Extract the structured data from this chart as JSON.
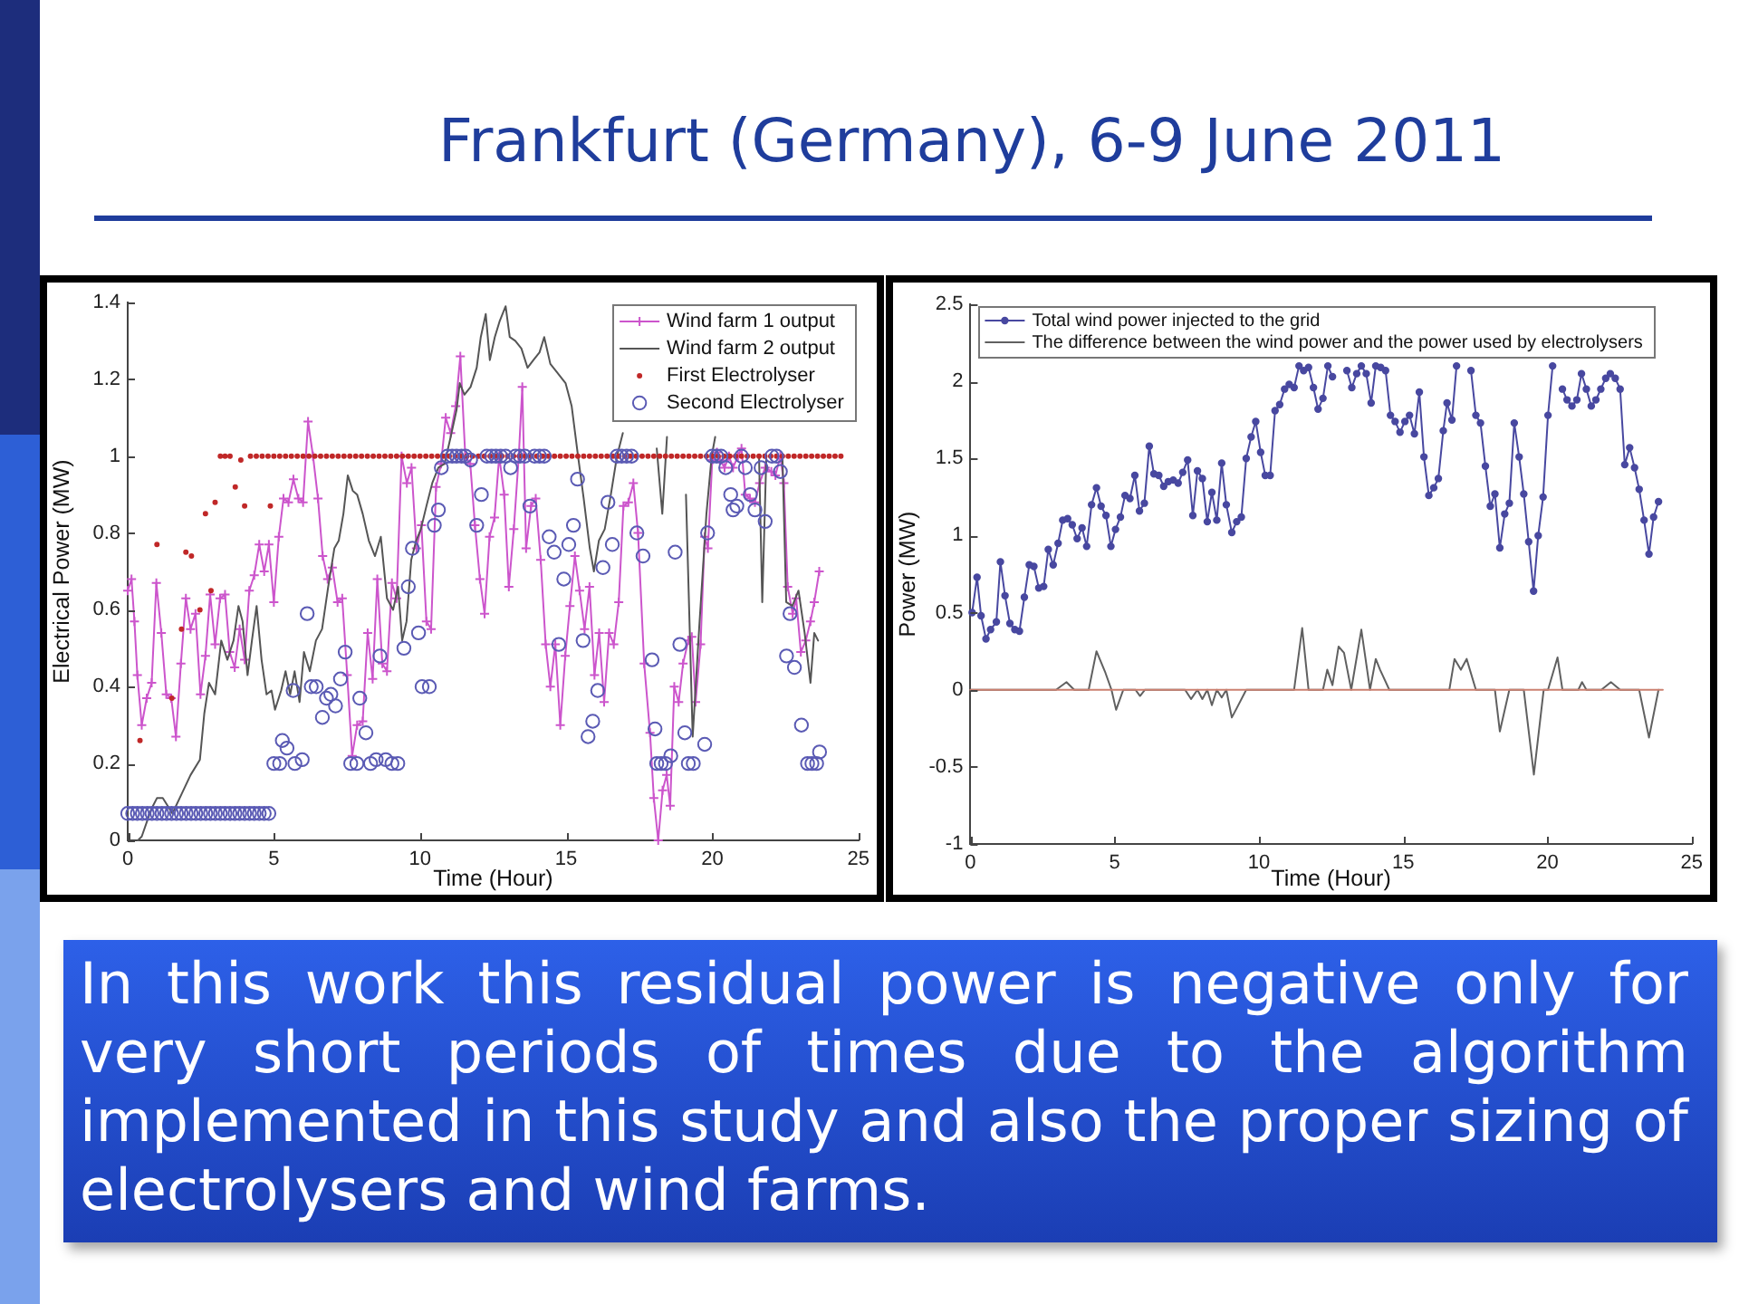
{
  "chart_data": [
    {
      "type": "other",
      "title": "Frankfurt (Germany), 6-9 June 2011"
    },
    {
      "type": "line",
      "xlabel": "Time (Hour)",
      "ylabel": "Electrical Power (MW)",
      "xlim": [
        0,
        25
      ],
      "xticks": [
        0,
        5,
        10,
        15,
        20,
        25
      ],
      "ylim": [
        0,
        1.4
      ],
      "yticks": [
        0,
        0.2,
        0.4,
        0.6,
        0.8,
        1,
        1.2,
        1.4
      ],
      "legend": "top right",
      "series": [
        {
          "name": "Wind farm 1 output",
          "type": "line",
          "marker": "cross",
          "color": "#cc55cc",
          "x": [
            0,
            0.13,
            0.23,
            0.33,
            0.48,
            0.65,
            0.82,
            0.98,
            1.15,
            1.32,
            1.49,
            1.65,
            1.82,
            1.99,
            2.15,
            2.32,
            2.49,
            2.66,
            2.82,
            2.99,
            3.16,
            3.33,
            3.49,
            3.66,
            3.83,
            4.0,
            4.16,
            4.33,
            4.5,
            4.67,
            4.83,
            5.0,
            5.17,
            5.33,
            5.5,
            5.67,
            5.84,
            6.0,
            6.17,
            6.34,
            6.51,
            6.67,
            6.84,
            7.0,
            7.18,
            7.34,
            7.51,
            7.68,
            7.85,
            8.04,
            8.21,
            8.38,
            8.54,
            8.71,
            8.87,
            9.04,
            9.2,
            9.37,
            9.55,
            9.71,
            9.88,
            10.05,
            10.22,
            10.38,
            10.55,
            10.72,
            10.88,
            11.05,
            11.22,
            11.38,
            11.55,
            11.72,
            11.88,
            12.05,
            12.21,
            12.38,
            12.55,
            12.71,
            12.88,
            13.04,
            13.21,
            13.38,
            13.5,
            13.63,
            13.8,
            13.96,
            14.13,
            14.3,
            14.46,
            14.63,
            14.8,
            14.97,
            15.13,
            15.3,
            15.46,
            15.63,
            15.8,
            15.97,
            16.13,
            16.3,
            16.47,
            16.63,
            16.8,
            16.96,
            17.13,
            17.3,
            17.46,
            17.67,
            17.87,
            18.0,
            18.15,
            18.3,
            18.44,
            18.56,
            18.7,
            18.85,
            19.0,
            19.18,
            19.3,
            19.43,
            19.6,
            19.74,
            19.85,
            20.0,
            20.16,
            20.26,
            20.42,
            20.57,
            20.71,
            20.88,
            21.0,
            21.13,
            21.29,
            21.46,
            21.62,
            21.81,
            22.02,
            22.16,
            22.33,
            22.45,
            22.58,
            22.75,
            22.87,
            23.03,
            23.2,
            23.36,
            23.49,
            23.66
          ],
          "values": [
            0.65,
            0.68,
            0.57,
            0.43,
            0.3,
            0.37,
            0.41,
            0.67,
            0.54,
            0.38,
            0.37,
            0.27,
            0.46,
            0.63,
            0.55,
            0.59,
            0.38,
            0.48,
            0.64,
            0.51,
            0.63,
            0.64,
            0.49,
            0.45,
            0.55,
            0.47,
            0.65,
            0.69,
            0.77,
            0.7,
            0.77,
            0.62,
            0.79,
            0.89,
            0.88,
            0.94,
            0.89,
            0.88,
            1.09,
            1.0,
            0.89,
            0.74,
            0.68,
            0.71,
            0.62,
            0.63,
            0.43,
            0.22,
            0.3,
            0.31,
            0.54,
            0.42,
            0.68,
            0.46,
            0.44,
            0.67,
            0.63,
            1.0,
            0.93,
            0.97,
            0.76,
            0.82,
            0.57,
            0.55,
            0.92,
            0.98,
            1.1,
            1.06,
            1.13,
            1.26,
            1.0,
            0.98,
            0.82,
            0.68,
            0.59,
            0.79,
            0.84,
            1.0,
            0.9,
            0.66,
            0.81,
            1.0,
            1.18,
            0.76,
            0.87,
            0.89,
            0.73,
            0.51,
            0.4,
            0.51,
            0.3,
            0.48,
            0.61,
            0.74,
            0.65,
            0.55,
            0.66,
            0.43,
            0.54,
            0.36,
            0.54,
            0.51,
            0.62,
            0.87,
            0.88,
            0.93,
            0.8,
            0.46,
            0.28,
            0.11,
            0.0,
            0.13,
            0.17,
            0.09,
            0.4,
            0.36,
            0.46,
            0.52,
            0.53,
            0.36,
            0.51,
            0.79,
            0.76,
            0.99,
            1.01,
            0.99,
            0.97,
            1.0,
            0.97,
            1.0,
            1.02,
            0.9,
            0.89,
            0.88,
            0.93,
            0.97,
            0.96,
            0.95,
            1.0,
            0.93,
            0.66,
            0.59,
            0.63,
            0.49,
            0.52,
            0.57,
            0.62,
            0.7
          ]
        },
        {
          "name": "Wind farm 2 output",
          "type": "line",
          "marker": "none",
          "color": "#555555",
          "x": [
            0.35,
            0.48,
            0.8,
            1.0,
            1.2,
            1.53,
            1.84,
            2.15,
            2.47,
            2.62,
            2.78,
            2.99,
            3.2,
            3.41,
            3.62,
            3.79,
            3.93,
            4.1,
            4.25,
            4.41,
            4.58,
            4.75,
            4.92,
            5.04,
            5.25,
            5.4,
            5.56,
            5.71,
            5.88,
            6.03,
            6.23,
            6.44,
            6.65,
            6.86,
            7.07,
            7.22,
            7.38,
            7.53,
            7.7,
            7.85,
            8.04,
            8.25,
            8.46,
            8.66,
            8.87,
            9.08,
            9.25,
            9.39,
            9.54,
            9.7,
            9.87,
            10.03,
            10.22,
            10.42,
            10.63,
            10.84,
            11.05,
            11.25,
            11.36,
            11.52,
            11.73,
            11.94,
            12.08,
            12.25,
            12.39,
            12.56,
            12.72,
            12.93,
            13.07,
            13.26,
            13.47,
            13.68,
            13.88,
            14.09,
            14.25,
            14.46,
            14.67,
            14.98,
            15.19,
            15.39,
            15.6,
            15.81,
            15.95,
            16.12,
            16.32,
            16.53,
            16.74,
            16.94,
            17.15,
            17.5,
            17.9,
            18.1,
            18.29,
            18.45,
            18.6,
            18.9,
            19.1,
            19.33,
            19.55,
            19.8,
            19.98,
            20.1,
            20.3,
            20.7,
            21.1,
            21.5,
            21.6,
            21.71,
            21.85,
            22.0,
            22.2,
            22.4,
            22.53,
            22.74,
            22.95,
            23.16,
            23.36,
            23.49,
            23.62
          ],
          "values": [
            0.0,
            0.01,
            0.08,
            0.11,
            0.11,
            0.07,
            0.12,
            0.17,
            0.21,
            0.33,
            0.41,
            0.38,
            0.52,
            0.47,
            0.52,
            0.61,
            0.57,
            0.43,
            0.52,
            0.61,
            0.47,
            0.38,
            0.39,
            0.34,
            0.39,
            0.44,
            0.38,
            0.44,
            0.36,
            0.49,
            0.44,
            0.52,
            0.55,
            0.66,
            0.76,
            0.78,
            0.85,
            0.95,
            0.91,
            0.9,
            0.85,
            0.78,
            0.74,
            0.79,
            0.63,
            0.6,
            0.66,
            0.52,
            0.57,
            0.73,
            0.78,
            0.81,
            0.87,
            0.93,
            0.97,
            0.98,
            1.05,
            1.12,
            1.19,
            1.16,
            1.18,
            1.23,
            1.31,
            1.37,
            1.25,
            1.31,
            1.35,
            1.39,
            1.31,
            1.3,
            1.28,
            1.23,
            1.25,
            1.27,
            1.31,
            1.24,
            1.22,
            1.19,
            1.13,
            1.01,
            0.89,
            0.76,
            0.7,
            0.78,
            0.81,
            0.9,
            1.0,
            1.06,
            null,
            null,
            null,
            1.02,
            0.85,
            1.05,
            null,
            null,
            0.9,
            0.27,
            0.55,
            0.85,
            1.0,
            1.05,
            null,
            null,
            null,
            null,
            1.0,
            0.62,
            1.0,
            null,
            null,
            1.0,
            0.62,
            0.61,
            0.65,
            0.54,
            0.41,
            0.54,
            0.52
          ]
        },
        {
          "name": "First Electrolyser",
          "type": "scatter",
          "marker": "circle",
          "color": "#c02828",
          "x": [
            0.42,
            1.0,
            1.51,
            1.84,
            1.99,
            2.18,
            2.47,
            2.66,
            2.85,
            2.99,
            3.17,
            3.33,
            3.5,
            3.68,
            3.87,
            4.0,
            4.2,
            4.4,
            4.6,
            4.8,
            4.88,
            5,
            5.2,
            5.4,
            5.6,
            5.8,
            6,
            6.2,
            6.4,
            6.6,
            6.8,
            7,
            7.2,
            7.4,
            7.6,
            7.8,
            8,
            8.2,
            8.4,
            8.6,
            8.8,
            9,
            9.2,
            9.4,
            9.6,
            9.8,
            10,
            10.2,
            10.4,
            10.6,
            10.8,
            11,
            11.2,
            11.4,
            11.6,
            11.8,
            12,
            12.2,
            12.4,
            12.6,
            12.8,
            13,
            13.2,
            13.4,
            13.6,
            13.8,
            14,
            14.2,
            14.4,
            14.6,
            14.8,
            15,
            15.2,
            15.4,
            15.6,
            15.8,
            16,
            16.2,
            16.4,
            16.6,
            16.8,
            17,
            17.2,
            17.4,
            17.6,
            17.8,
            18,
            18.2,
            18.4,
            18.6,
            18.8,
            19,
            19.2,
            19.4,
            19.6,
            19.8,
            20,
            20.2,
            20.4,
            20.6,
            20.8,
            21,
            21.2,
            21.4,
            21.6,
            21.8,
            22,
            22.2,
            22.4,
            22.6,
            22.8,
            23,
            23.2,
            23.4,
            23.6,
            23.8,
            24,
            24.2,
            24.4
          ],
          "values": [
            0.26,
            0.77,
            0.37,
            0.55,
            0.75,
            0.74,
            0.6,
            0.85,
            0.65,
            0.88,
            1,
            1,
            1,
            0.92,
            0.99,
            0.87,
            1,
            1,
            1,
            1,
            0.87,
            1,
            1,
            1,
            1,
            1,
            1,
            1,
            1,
            1,
            1,
            1,
            1,
            1,
            1,
            1,
            1,
            1,
            1,
            1,
            1,
            1,
            1,
            1,
            1,
            1,
            1,
            1,
            1,
            1,
            1,
            1,
            1,
            1,
            1,
            1,
            1,
            1,
            1,
            1,
            1,
            1,
            1,
            1,
            1,
            1,
            1,
            1,
            1,
            1,
            1,
            1,
            1,
            1,
            1,
            1,
            1,
            1,
            1,
            1,
            1,
            1,
            1,
            1,
            1,
            1,
            1,
            1,
            1,
            1,
            1,
            1,
            1,
            1,
            1,
            1,
            1,
            1,
            1,
            1,
            1,
            1,
            1,
            1,
            1,
            1,
            1,
            1,
            1,
            1,
            1,
            1,
            1,
            1,
            1,
            1,
            1,
            1,
            1
          ]
        },
        {
          "name": "Second Electrolyser",
          "type": "scatter",
          "marker": "circle",
          "color": "#5a5ab4",
          "x": [
            0,
            0.17,
            0.33,
            0.5,
            0.67,
            0.83,
            1,
            1.17,
            1.33,
            1.5,
            1.67,
            1.83,
            2,
            2.17,
            2.33,
            2.5,
            2.67,
            2.83,
            3,
            3.17,
            3.33,
            3.5,
            3.67,
            3.83,
            4,
            4.17,
            4.33,
            4.5,
            4.67,
            4.83,
            5.0,
            5.2,
            5.29,
            5.45,
            5.66,
            5.72,
            5.97,
            6.14,
            6.28,
            6.45,
            6.66,
            6.8,
            6.95,
            7.11,
            7.28,
            7.44,
            7.63,
            7.84,
            7.94,
            8.15,
            8.31,
            8.5,
            8.63,
            8.83,
            9.04,
            9.24,
            9.45,
            9.6,
            9.74,
            9.95,
            10.07,
            10.32,
            10.49,
            10.63,
            10.73,
            10.94,
            11.1,
            11.25,
            11.42,
            11.56,
            11.73,
            11.94,
            12.1,
            12.29,
            12.45,
            12.6,
            12.76,
            12.93,
            13.1,
            13.27,
            13.42,
            13.59,
            13.76,
            13.92,
            14.09,
            14.25,
            14.42,
            14.59,
            14.75,
            14.92,
            15.09,
            15.25,
            15.39,
            15.58,
            15.75,
            15.91,
            16.08,
            16.26,
            16.43,
            16.58,
            16.74,
            16.9,
            17.07,
            17.24,
            17.42,
            17.63,
            17.94,
            18.04,
            18.1,
            18.25,
            18.4,
            18.58,
            18.73,
            18.89,
            19.06,
            19.18,
            19.35,
            19.74,
            19.84,
            20.0,
            20.15,
            20.3,
            20.46,
            20.63,
            20.71,
            20.84,
            21.0,
            21.13,
            21.3,
            21.46,
            21.67,
            21.81,
            22.04,
            22.2,
            22.33,
            22.54,
            22.66,
            22.81,
            23.05,
            23.26,
            23.41,
            23.57,
            23.67
          ],
          "values": [
            0.07,
            0.07,
            0.07,
            0.07,
            0.07,
            0.07,
            0.07,
            0.07,
            0.07,
            0.07,
            0.07,
            0.07,
            0.07,
            0.07,
            0.07,
            0.07,
            0.07,
            0.07,
            0.07,
            0.07,
            0.07,
            0.07,
            0.07,
            0.07,
            0.07,
            0.07,
            0.07,
            0.07,
            0.07,
            0.07,
            0.2,
            0.2,
            0.26,
            0.24,
            0.39,
            0.2,
            0.21,
            0.59,
            0.4,
            0.4,
            0.32,
            0.37,
            0.38,
            0.35,
            0.42,
            0.49,
            0.2,
            0.2,
            0.37,
            0.28,
            0.2,
            0.21,
            0.48,
            0.21,
            0.2,
            0.2,
            0.5,
            0.66,
            0.76,
            0.54,
            0.4,
            0.4,
            0.82,
            0.86,
            0.97,
            1.0,
            1,
            1,
            1,
            1,
            0.99,
            0.82,
            0.9,
            1,
            1,
            1,
            1,
            1,
            0.97,
            1,
            1,
            1,
            0.87,
            1,
            1,
            1,
            0.79,
            0.75,
            0.51,
            0.68,
            0.77,
            0.82,
            0.94,
            0.52,
            0.27,
            0.31,
            0.39,
            0.71,
            0.88,
            0.77,
            1,
            1,
            1,
            1,
            0.8,
            0.74,
            0.47,
            0.29,
            0.2,
            0.2,
            0.2,
            0.22,
            0.75,
            0.51,
            0.28,
            0.2,
            0.2,
            0.25,
            0.8,
            1,
            1,
            1,
            0.97,
            0.9,
            0.86,
            0.87,
            1,
            0.97,
            0.9,
            0.86,
            0.97,
            0.83,
            1,
            1,
            0.96,
            0.48,
            0.59,
            0.45,
            0.3,
            0.2,
            0.2,
            0.2,
            0.23
          ]
        }
      ]
    },
    {
      "type": "line",
      "xlabel": "Time (Hour)",
      "ylabel": "Power (MW)",
      "xlim": [
        0,
        25
      ],
      "xticks": [
        0,
        5,
        10,
        15,
        20,
        25
      ],
      "ylim": [
        -1,
        2.5
      ],
      "yticks": [
        -1,
        -0.5,
        0,
        0.5,
        1,
        1.5,
        2,
        2.5
      ],
      "legend": "top left",
      "series": [
        {
          "name": "Total wind power injected to the grid",
          "type": "line",
          "marker": "circle",
          "color": "#4848a0",
          "x": [
            0.06,
            0.23,
            0.37,
            0.54,
            0.7,
            0.9,
            1.04,
            1.2,
            1.37,
            1.54,
            1.7,
            1.87,
            2.04,
            2.2,
            2.37,
            2.54,
            2.7,
            2.87,
            3.04,
            3.2,
            3.37,
            3.53,
            3.7,
            3.87,
            4.03,
            4.2,
            4.37,
            4.53,
            4.7,
            4.87,
            5.03,
            5.2,
            5.36,
            5.53,
            5.7,
            5.86,
            6.03,
            6.2,
            6.36,
            6.53,
            6.7,
            6.86,
            7.03,
            7.2,
            7.36,
            7.53,
            7.71,
            7.87,
            8.04,
            8.21,
            8.37,
            8.54,
            8.71,
            8.87,
            9.06,
            9.23,
            9.39,
            9.56,
            9.73,
            9.89,
            10.06,
            10.22,
            10.39,
            10.56,
            10.72,
            10.89,
            11.05,
            11.22,
            11.39,
            11.55,
            11.72,
            11.89,
            12.05,
            12.22,
            12.39,
            12.55,
            12.72,
            12.89,
            13.05,
            13.22,
            13.39,
            13.55,
            13.72,
            13.89,
            14.05,
            14.22,
            14.39,
            14.56,
            14.72,
            14.89,
            15.06,
            15.22,
            15.39,
            15.56,
            15.72,
            15.89,
            16.06,
            16.22,
            16.39,
            16.52,
            16.69,
            16.85,
            17.02,
            17.18,
            17.35,
            17.52,
            17.68,
            17.85,
            18.02,
            18.18,
            18.35,
            18.52,
            18.68,
            18.85,
            19.02,
            19.18,
            19.35,
            19.52,
            19.68,
            19.85,
            20.02,
            20.18,
            20.35,
            20.52,
            20.68,
            20.85,
            21.02,
            21.18,
            21.35,
            21.52,
            21.68,
            21.85,
            22.02,
            22.18,
            22.35,
            22.52,
            22.68,
            22.85,
            23.02,
            23.18,
            23.35,
            23.52,
            23.68,
            23.85
          ],
          "values": [
            0.5,
            0.73,
            0.48,
            0.33,
            0.39,
            0.44,
            0.83,
            0.61,
            0.43,
            0.39,
            0.38,
            0.6,
            0.81,
            0.8,
            0.66,
            0.67,
            0.91,
            0.81,
            0.95,
            1.1,
            1.11,
            1.07,
            0.98,
            1.05,
            0.93,
            1.2,
            1.31,
            1.19,
            1.13,
            0.93,
            1.04,
            1.12,
            1.26,
            1.24,
            1.39,
            1.16,
            1.21,
            1.58,
            1.4,
            1.39,
            1.32,
            1.35,
            1.36,
            1.34,
            1.41,
            1.49,
            1.13,
            1.42,
            1.37,
            1.09,
            1.28,
            1.1,
            1.47,
            1.2,
            1.02,
            1.09,
            1.12,
            1.5,
            1.64,
            1.74,
            1.54,
            1.39,
            1.39,
            1.81,
            1.85,
            1.95,
            1.98,
            1.96,
            2.1,
            2.07,
            2.09,
            1.96,
            1.82,
            1.89,
            2.1,
            2.03,
            null,
            null,
            2.07,
            1.96,
            2.05,
            2.1,
            2.05,
            1.86,
            2.1,
            2.09,
            2.07,
            1.78,
            1.74,
            1.67,
            1.74,
            1.78,
            1.66,
            1.93,
            1.51,
            1.26,
            1.31,
            1.37,
            1.68,
            1.86,
            1.75,
            2.1,
            null,
            null,
            2.07,
            1.78,
            1.73,
            1.45,
            1.19,
            1.27,
            0.92,
            1.14,
            1.21,
            1.73,
            1.51,
            1.27,
            0.96,
            0.64,
            1.0,
            1.25,
            1.78,
            2.1,
            null,
            1.95,
            1.88,
            1.84,
            1.88,
            2.05,
            1.95,
            1.84,
            1.88,
            1.95,
            2.02,
            2.05,
            2.02,
            1.95,
            1.46,
            1.57,
            1.44,
            1.3,
            1.1,
            0.88,
            1.12,
            1.22
          ]
        },
        {
          "name": "The difference between the wind power and the power used by electrolysers",
          "type": "line",
          "marker": "none",
          "color": "#606060",
          "x": [
            0,
            2.97,
            3.33,
            3.6,
            4.1,
            4.37,
            4.68,
            4.89,
            5.05,
            5.3,
            5.72,
            5.88,
            6.05,
            7.44,
            7.65,
            7.87,
            8.04,
            8.21,
            8.37,
            8.54,
            8.71,
            8.87,
            9.06,
            9.23,
            9.56,
            11.22,
            11.5,
            11.72,
            12.22,
            12.37,
            12.55,
            12.76,
            12.95,
            13.2,
            13.55,
            13.85,
            14.05,
            14.2,
            14.52,
            16.6,
            16.78,
            17.0,
            17.2,
            17.52,
            18.18,
            18.35,
            18.68,
            19.18,
            19.53,
            19.87,
            20.02,
            20.35,
            20.52,
            21.07,
            21.2,
            21.35,
            21.87,
            22.2,
            22.52,
            23.18,
            23.52,
            23.85
          ],
          "values": [
            0,
            0,
            0.05,
            0,
            0,
            0.25,
            0.11,
            0,
            -0.13,
            0,
            0,
            -0.04,
            0,
            0,
            -0.06,
            0,
            -0.06,
            0,
            -0.1,
            0,
            -0.05,
            0,
            -0.18,
            -0.12,
            0,
            0,
            0.4,
            0,
            0,
            0.13,
            0.03,
            0.28,
            0.24,
            0,
            0.39,
            0,
            0.2,
            0.13,
            0,
            0,
            0.2,
            0.13,
            0.2,
            0,
            0,
            -0.27,
            0,
            0,
            -0.55,
            0,
            0,
            0.21,
            0,
            0,
            0.05,
            0,
            0,
            0.05,
            0,
            0,
            -0.31,
            0
          ]
        },
        {
          "type": "line",
          "marker": "none",
          "color": "#cc8070",
          "x": [
            0,
            24
          ],
          "values": [
            0,
            0
          ]
        }
      ]
    },
    {
      "type": "other",
      "annotations": [
        "In this work this residual power is negative only for very short periods of times due to the algorithm implemented in this study and also the proper sizing of electrolysers and wind farms."
      ]
    }
  ]
}
